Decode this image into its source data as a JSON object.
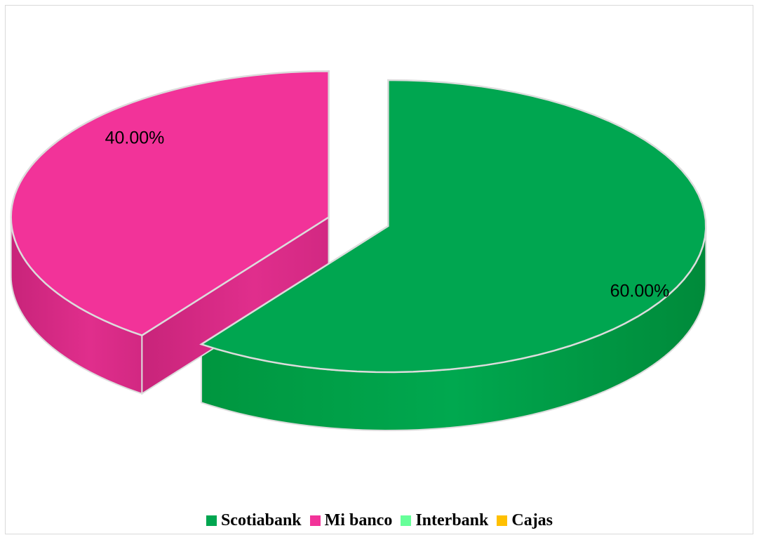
{
  "chart_data": {
    "type": "pie",
    "title": "",
    "categories": [
      "Scotiabank",
      "Mi banco",
      "Interbank",
      "Cajas"
    ],
    "values": [
      60,
      40,
      0,
      0
    ],
    "labels": [
      "60.00%",
      "40.00%",
      "",
      ""
    ],
    "colors": [
      "#00A650",
      "#F23399",
      "#66FF99",
      "#FFC000"
    ],
    "legend_position": "bottom",
    "style": "3d-exploded"
  }
}
